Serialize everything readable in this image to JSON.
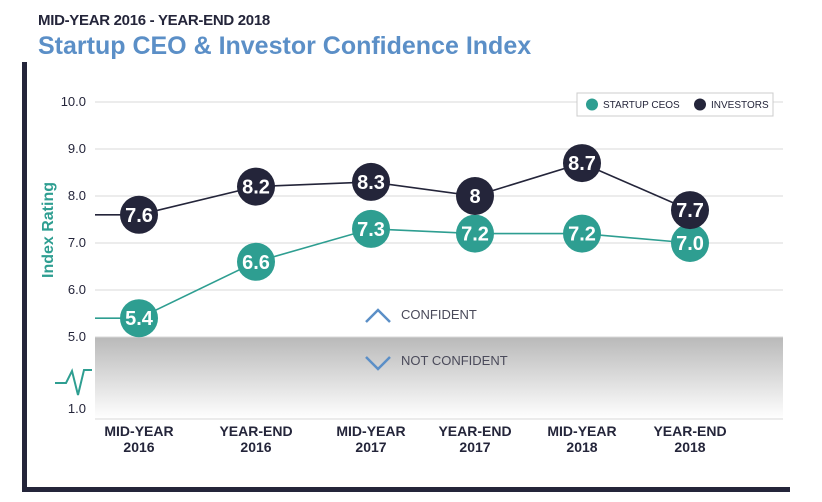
{
  "header": {
    "subtitle": "MID-YEAR 2016 - YEAR-END 2018",
    "title": "Startup CEO & Investor Confidence Index"
  },
  "colors": {
    "ceo": "#2e9e91",
    "investor": "#24253a",
    "title": "#5b8fc7",
    "grid": "#d8d8d8"
  },
  "chart_data": {
    "type": "line",
    "title": "Startup CEO & Investor Confidence Index",
    "subtitle": "MID-YEAR 2016 - YEAR-END 2018",
    "ylabel": "Index Rating",
    "xlabel": "",
    "ylim": [
      5.0,
      10.0
    ],
    "y_ticks": [
      "10.0",
      "9.0",
      "8.0",
      "7.0",
      "6.0",
      "5.0"
    ],
    "y_break_tick": "1.0",
    "categories": [
      [
        "MID-YEAR",
        "2016"
      ],
      [
        "YEAR-END",
        "2016"
      ],
      [
        "MID-YEAR",
        "2017"
      ],
      [
        "YEAR-END",
        "2017"
      ],
      [
        "MID-YEAR",
        "2018"
      ],
      [
        "YEAR-END",
        "2018"
      ]
    ],
    "series": [
      {
        "name": "STARTUP CEOS",
        "values": [
          5.4,
          6.6,
          7.3,
          7.2,
          7.2,
          7.0
        ],
        "labels": [
          "5.4",
          "6.6",
          "7.3",
          "7.2",
          "7.2",
          "7.0"
        ]
      },
      {
        "name": "INVESTORS",
        "values": [
          7.6,
          8.2,
          8.3,
          8.0,
          8.7,
          7.7
        ],
        "labels": [
          "7.6",
          "8.2",
          "8.3",
          "8",
          "8.7",
          "7.7"
        ]
      }
    ],
    "legend_position": "top-right",
    "grid": true,
    "annotations": {
      "confident": "CONFIDENT",
      "not_confident": "NOT CONFIDENT"
    }
  }
}
